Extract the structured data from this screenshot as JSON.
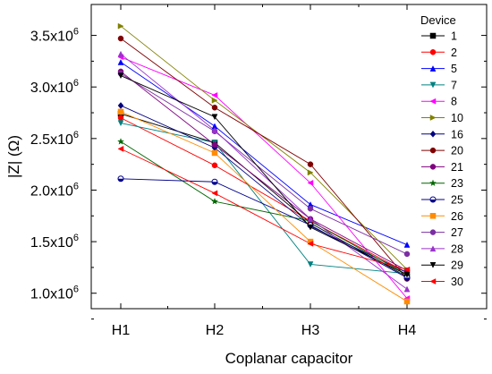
{
  "chart_data": {
    "type": "line",
    "categories": [
      "H1",
      "H2",
      "H3",
      "H4"
    ],
    "xlabel": "Coplanar capacitor",
    "ylabel": "|Z| (Ω)",
    "y_ticks": [
      {
        "value": 1000000,
        "label": "1.0x10",
        "exp": "6"
      },
      {
        "value": 1500000,
        "label": "1.5x10",
        "exp": "6"
      },
      {
        "value": 2000000,
        "label": "2.0x10",
        "exp": "6"
      },
      {
        "value": 2500000,
        "label": "2.5x10",
        "exp": "6"
      },
      {
        "value": 3000000,
        "label": "3.0x10",
        "exp": "6"
      },
      {
        "value": 3500000,
        "label": "3.5x10",
        "exp": "6"
      }
    ],
    "ylim": [
      850000,
      3800000
    ],
    "legend_title": "Device",
    "legend_position": "right",
    "series": [
      {
        "name": "1",
        "color": "#000000",
        "marker": "square",
        "values": [
          2740000,
          2460000,
          1680000,
          1160000
        ]
      },
      {
        "name": "2",
        "color": "#ff0000",
        "marker": "circle",
        "values": [
          2700000,
          2240000,
          1700000,
          1200000
        ]
      },
      {
        "name": "5",
        "color": "#0000ff",
        "marker": "triangle-up",
        "values": [
          3240000,
          2620000,
          1860000,
          1470000
        ]
      },
      {
        "name": "7",
        "color": "#008080",
        "marker": "triangle-down",
        "values": [
          2650000,
          2460000,
          1280000,
          1190000
        ]
      },
      {
        "name": "8",
        "color": "#ff00ff",
        "marker": "triangle-left",
        "values": [
          3290000,
          2920000,
          2070000,
          950000
        ]
      },
      {
        "name": "10",
        "color": "#808000",
        "marker": "triangle-right",
        "values": [
          3590000,
          2870000,
          2170000,
          1230000
        ]
      },
      {
        "name": "16",
        "color": "#000080",
        "marker": "diamond",
        "values": [
          2820000,
          2410000,
          1650000,
          1200000
        ]
      },
      {
        "name": "20",
        "color": "#800000",
        "marker": "circle",
        "values": [
          3470000,
          2800000,
          2250000,
          1140000
        ]
      },
      {
        "name": "21",
        "color": "#800080",
        "marker": "circle",
        "values": [
          3150000,
          2440000,
          1720000,
          1220000
        ]
      },
      {
        "name": "23",
        "color": "#006400",
        "marker": "star",
        "values": [
          2470000,
          1890000,
          1700000,
          1180000
        ]
      },
      {
        "name": "25",
        "color": "#00008b",
        "marker": "circle-half",
        "values": [
          2110000,
          2080000,
          1660000,
          1150000
        ]
      },
      {
        "name": "26",
        "color": "#ff8c00",
        "marker": "square",
        "values": [
          2760000,
          2360000,
          1500000,
          920000
        ]
      },
      {
        "name": "27",
        "color": "#7b2ea3",
        "marker": "circle",
        "values": [
          3130000,
          2570000,
          1820000,
          1380000
        ]
      },
      {
        "name": "28",
        "color": "#9932cc",
        "marker": "triangle-up",
        "values": [
          3320000,
          2580000,
          1720000,
          1040000
        ]
      },
      {
        "name": "29",
        "color": "#000000",
        "marker": "triangle-down",
        "values": [
          3110000,
          2710000,
          1640000,
          1180000
        ]
      },
      {
        "name": "30",
        "color": "#ff0000",
        "marker": "triangle-left",
        "values": [
          2400000,
          1970000,
          1480000,
          1230000
        ]
      }
    ]
  }
}
